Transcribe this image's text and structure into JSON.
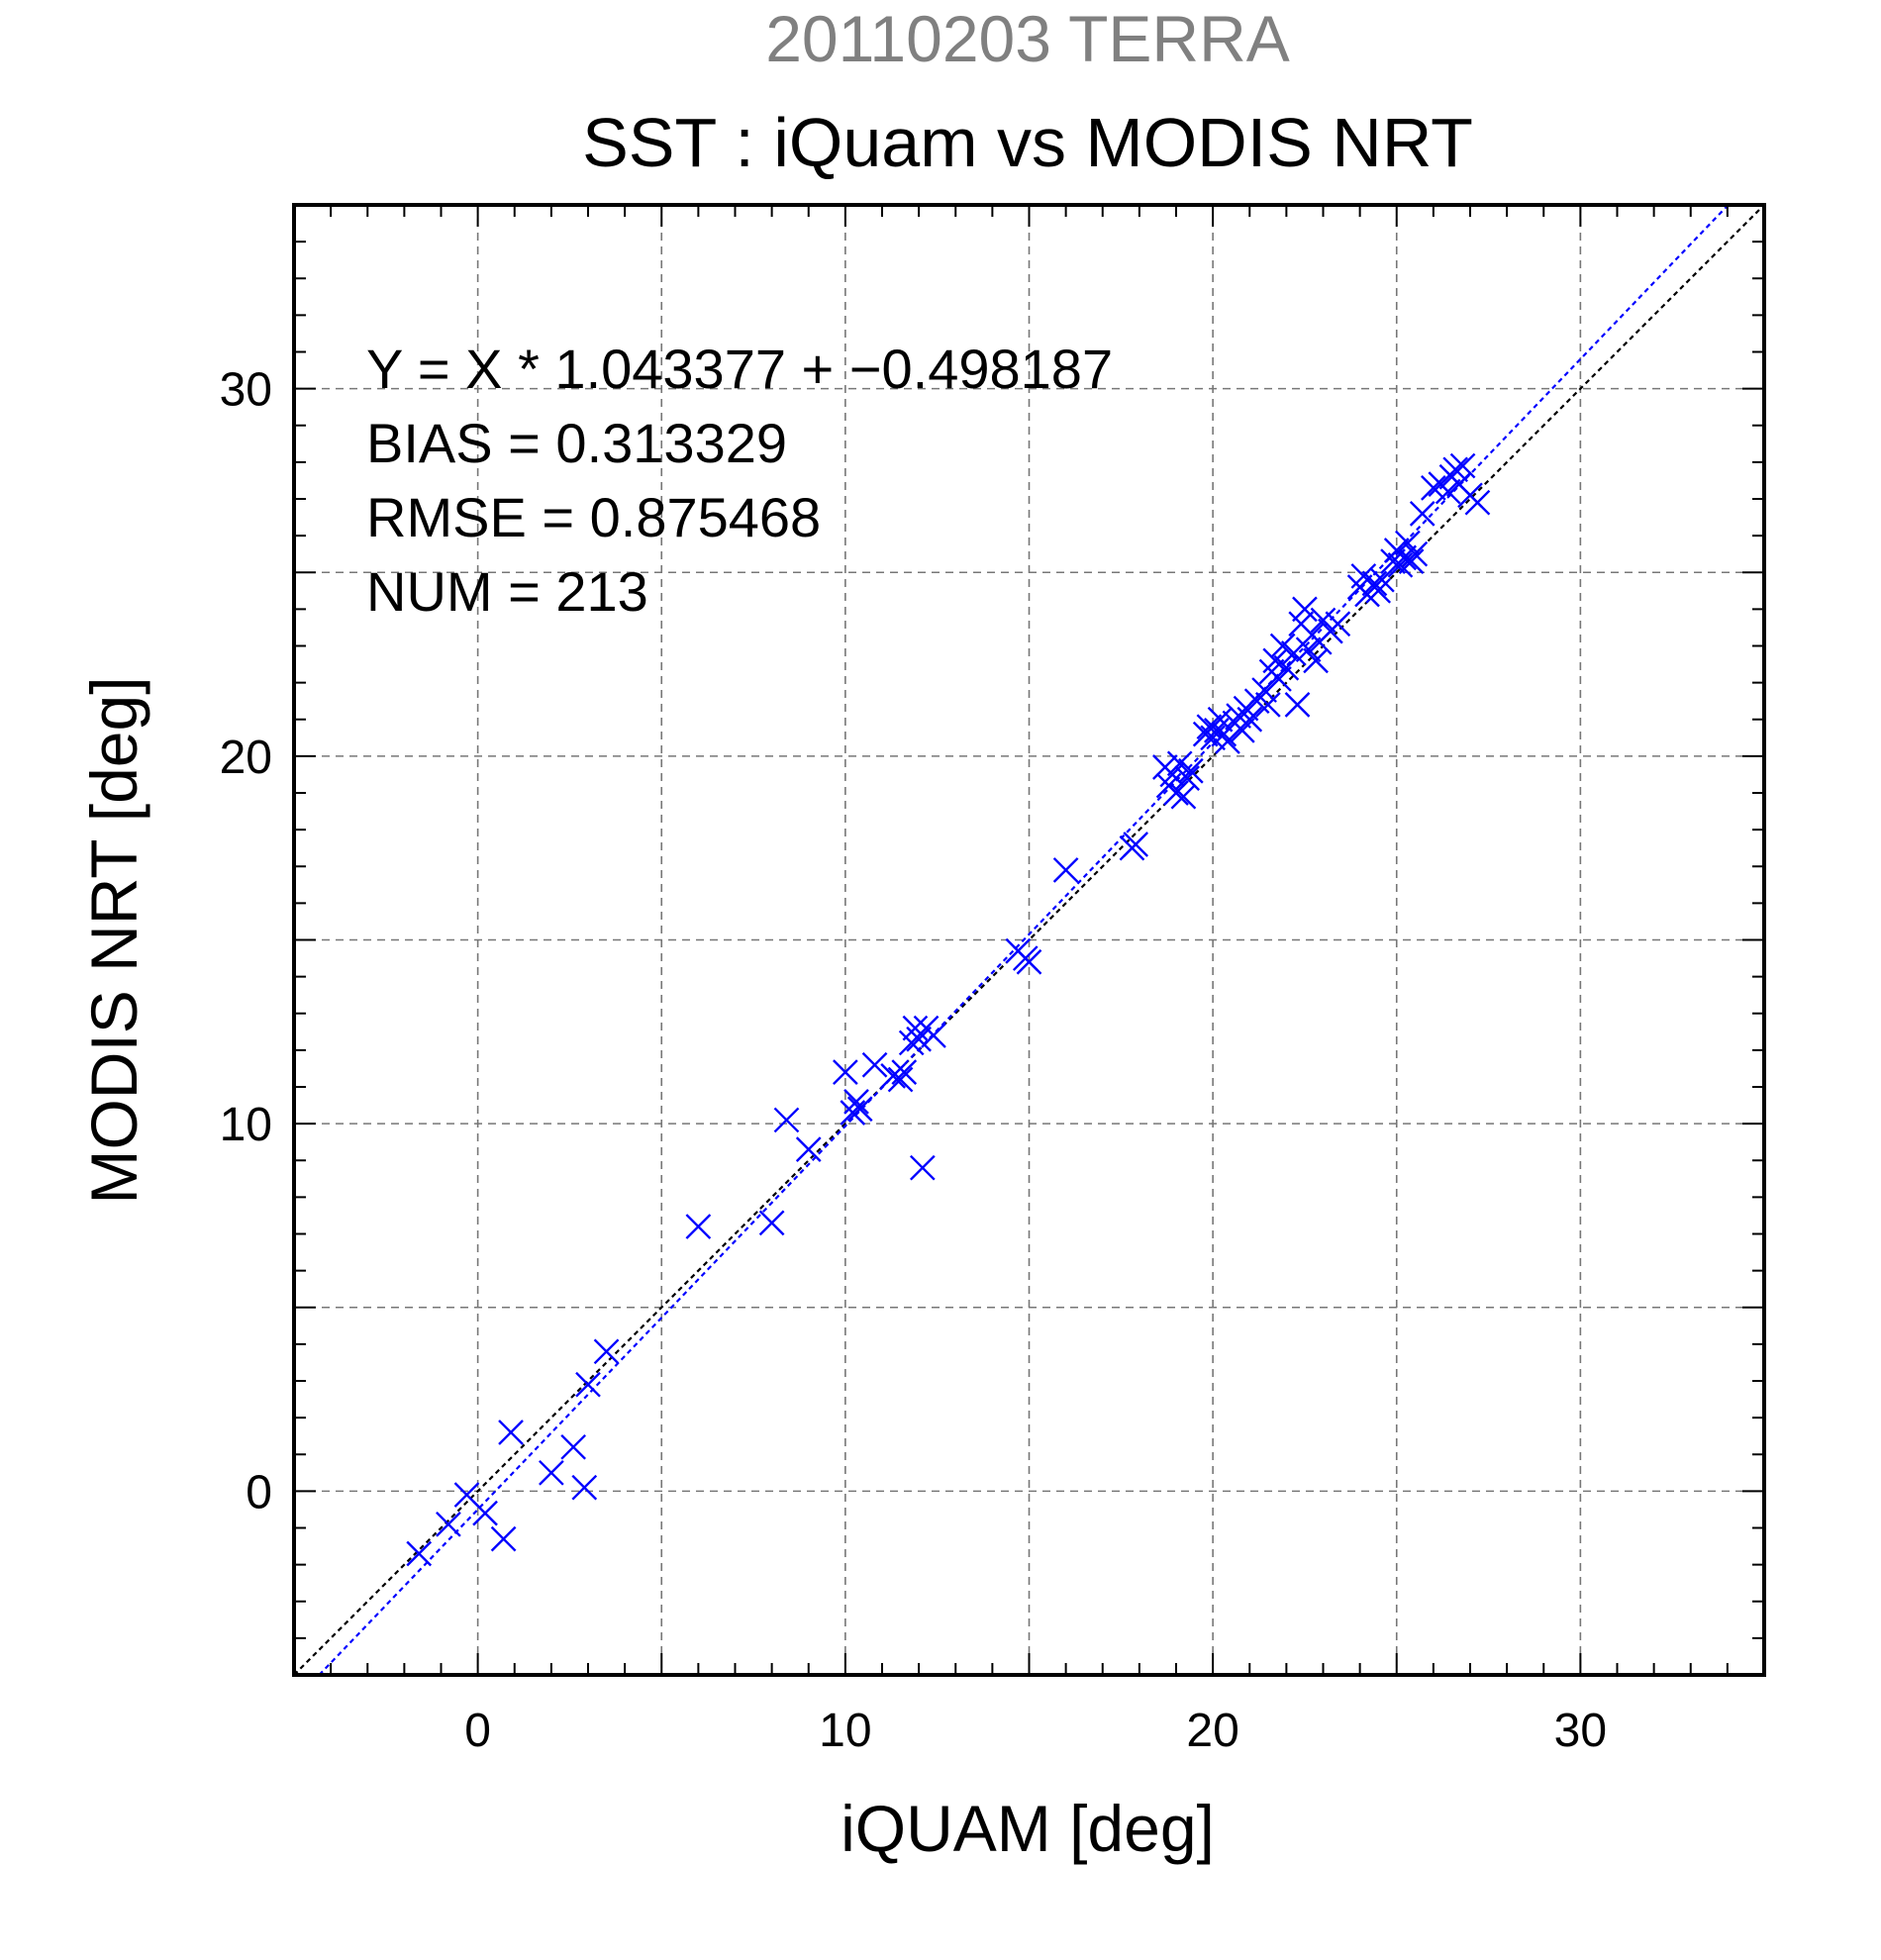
{
  "chart_data": {
    "type": "scatter",
    "suptitle": "20110203 TERRA",
    "title": "SST : iQuam vs MODIS NRT",
    "xlabel": "iQUAM [deg]",
    "ylabel": "MODIS NRT [deg]",
    "xlim": [
      -5,
      35
    ],
    "ylim": [
      -5,
      35
    ],
    "xticks": [
      0,
      10,
      20,
      30
    ],
    "yticks": [
      0,
      10,
      20,
      30
    ],
    "xtick_labels": [
      "0",
      "10",
      "20",
      "30"
    ],
    "ytick_labels": [
      "0",
      "10",
      "20",
      "30"
    ],
    "grid_step": 5,
    "grid": true,
    "marker": "x",
    "marker_color": "#0000ff",
    "fit_line_color": "#0000ff",
    "identity_line_color": "#000000",
    "stats": {
      "equation": "Y = X * 1.043377 + −0.498187",
      "bias": "BIAS = 0.313329",
      "rmse": "RMSE = 0.875468",
      "num": "NUM = 213"
    },
    "fit": {
      "slope": 1.043377,
      "intercept": -0.498187
    },
    "points": [
      [
        -1.6,
        -1.7
      ],
      [
        -0.8,
        -0.9
      ],
      [
        -0.3,
        -0.1
      ],
      [
        0.2,
        -0.6
      ],
      [
        0.7,
        -1.3
      ],
      [
        0.9,
        1.6
      ],
      [
        2.0,
        0.5
      ],
      [
        2.6,
        1.2
      ],
      [
        2.9,
        0.1
      ],
      [
        3.0,
        2.9
      ],
      [
        3.5,
        3.8
      ],
      [
        6.0,
        7.2
      ],
      [
        8.0,
        7.3
      ],
      [
        8.4,
        10.1
      ],
      [
        9.0,
        9.3
      ],
      [
        10.0,
        11.4
      ],
      [
        10.2,
        10.3
      ],
      [
        10.3,
        10.6
      ],
      [
        10.4,
        10.4
      ],
      [
        10.8,
        11.6
      ],
      [
        11.3,
        11.3
      ],
      [
        11.5,
        11.2
      ],
      [
        11.6,
        11.4
      ],
      [
        11.8,
        12.2
      ],
      [
        11.9,
        12.6
      ],
      [
        12.0,
        12.3
      ],
      [
        12.1,
        8.8
      ],
      [
        12.2,
        12.6
      ],
      [
        12.4,
        12.4
      ],
      [
        14.7,
        14.7
      ],
      [
        14.9,
        14.5
      ],
      [
        15.0,
        14.4
      ],
      [
        16.0,
        16.9
      ],
      [
        17.8,
        17.5
      ],
      [
        17.9,
        17.6
      ],
      [
        18.7,
        19.7
      ],
      [
        18.8,
        19.2
      ],
      [
        18.9,
        19.5
      ],
      [
        19.0,
        19.0
      ],
      [
        19.1,
        19.8
      ],
      [
        19.2,
        18.9
      ],
      [
        19.3,
        19.4
      ],
      [
        19.4,
        19.6
      ],
      [
        19.8,
        20.6
      ],
      [
        19.9,
        20.8
      ],
      [
        20.0,
        20.5
      ],
      [
        20.1,
        20.7
      ],
      [
        20.2,
        21.0
      ],
      [
        20.3,
        20.6
      ],
      [
        20.4,
        20.4
      ],
      [
        20.6,
        20.9
      ],
      [
        20.7,
        21.1
      ],
      [
        20.8,
        20.7
      ],
      [
        20.9,
        21.3
      ],
      [
        21.0,
        21.0
      ],
      [
        21.2,
        21.5
      ],
      [
        21.4,
        21.8
      ],
      [
        21.5,
        21.4
      ],
      [
        21.6,
        22.3
      ],
      [
        21.7,
        22.6
      ],
      [
        21.8,
        22.1
      ],
      [
        21.9,
        23.0
      ],
      [
        22.0,
        22.4
      ],
      [
        22.2,
        22.8
      ],
      [
        22.3,
        21.4
      ],
      [
        22.4,
        23.6
      ],
      [
        22.5,
        24.0
      ],
      [
        22.6,
        22.9
      ],
      [
        22.7,
        23.3
      ],
      [
        22.8,
        22.6
      ],
      [
        22.9,
        23.1
      ],
      [
        23.0,
        23.7
      ],
      [
        23.2,
        23.4
      ],
      [
        23.4,
        23.6
      ],
      [
        24.0,
        24.6
      ],
      [
        24.1,
        24.9
      ],
      [
        24.2,
        24.4
      ],
      [
        24.4,
        24.7
      ],
      [
        24.5,
        24.5
      ],
      [
        24.6,
        24.8
      ],
      [
        24.9,
        25.3
      ],
      [
        25.0,
        25.6
      ],
      [
        25.1,
        25.2
      ],
      [
        25.2,
        25.4
      ],
      [
        25.3,
        25.8
      ],
      [
        25.4,
        25.3
      ],
      [
        25.5,
        25.5
      ],
      [
        25.7,
        26.6
      ],
      [
        26.0,
        27.3
      ],
      [
        26.2,
        27.4
      ],
      [
        26.4,
        27.2
      ],
      [
        26.5,
        27.6
      ],
      [
        26.6,
        27.8
      ],
      [
        26.7,
        27.4
      ],
      [
        26.8,
        27.9
      ],
      [
        27.0,
        27.1
      ],
      [
        27.2,
        26.9
      ]
    ]
  }
}
